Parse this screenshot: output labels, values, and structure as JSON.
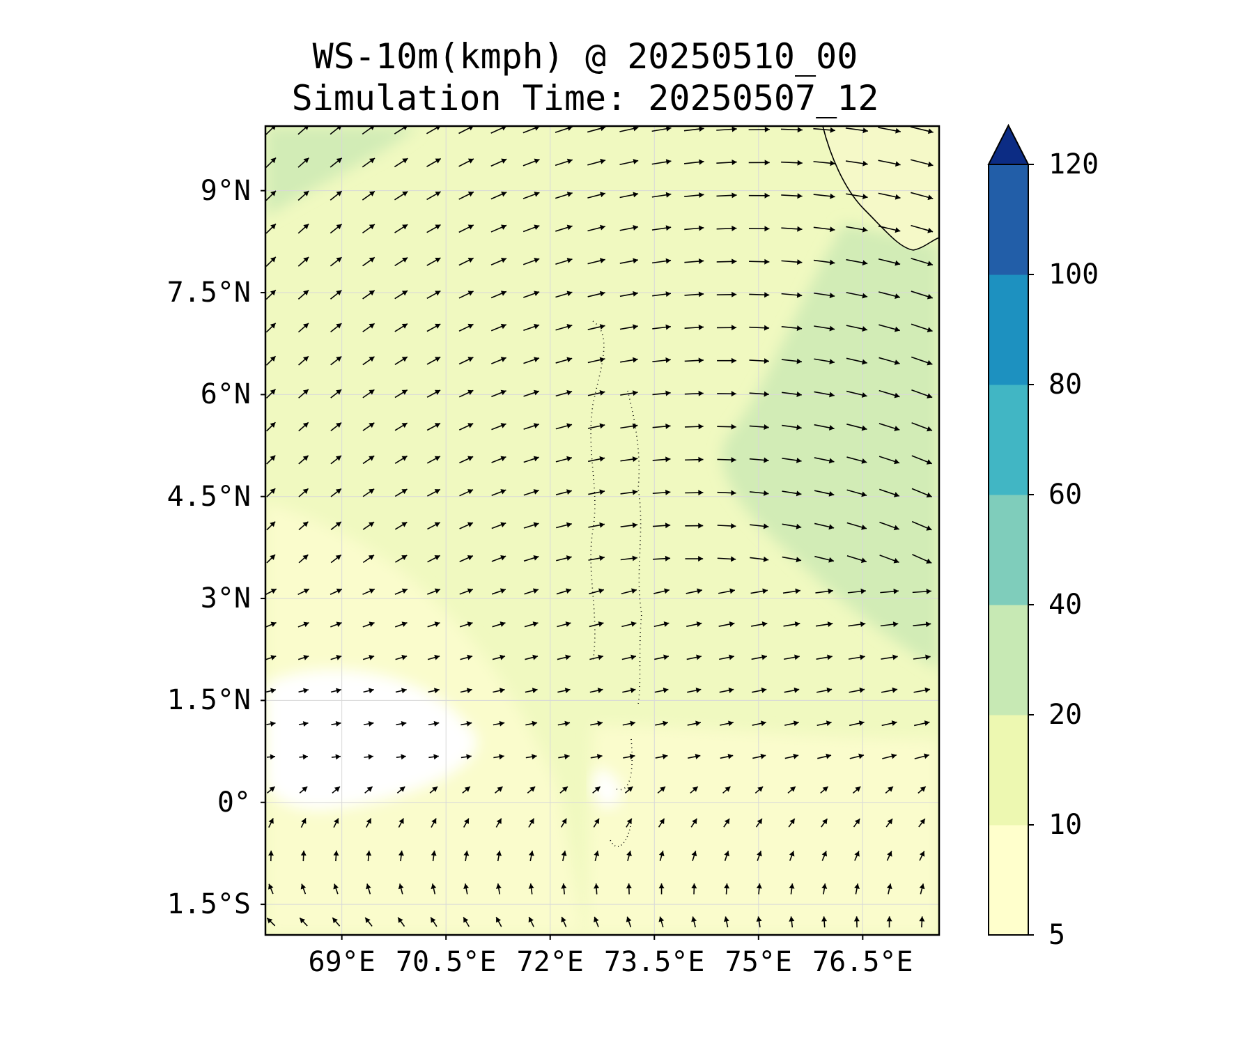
{
  "title": {
    "line1": "WS-10m(kmph) @ 20250510_00",
    "line2": "Simulation Time: 20250507_12"
  },
  "map": {
    "lon_range": [
      67.9,
      77.6
    ],
    "lat_range": [
      -1.95,
      9.95
    ],
    "lat_ticks": [
      {
        "value": 9,
        "label": "9°N"
      },
      {
        "value": 7.5,
        "label": "7.5°N"
      },
      {
        "value": 6,
        "label": "6°N"
      },
      {
        "value": 4.5,
        "label": "4.5°N"
      },
      {
        "value": 3,
        "label": "3°N"
      },
      {
        "value": 1.5,
        "label": "1.5°N"
      },
      {
        "value": 0,
        "label": "0°"
      },
      {
        "value": -1.5,
        "label": "1.5°S"
      }
    ],
    "lon_ticks": [
      {
        "value": 69,
        "label": "69°E"
      },
      {
        "value": 70.5,
        "label": "70.5°E"
      },
      {
        "value": 72,
        "label": "72°E"
      },
      {
        "value": 73.5,
        "label": "73.5°E"
      },
      {
        "value": 75,
        "label": "75°E"
      },
      {
        "value": 76.5,
        "label": "76.5°E"
      }
    ],
    "gridlines": true
  },
  "colorbar": {
    "levels": [
      5,
      10,
      20,
      40,
      60,
      80,
      100,
      120
    ],
    "labels": [
      "5",
      "10",
      "20",
      "40",
      "60",
      "80",
      "100",
      "120"
    ],
    "colors": [
      "#ffffcc",
      "#edf8b1",
      "#c7e9b4",
      "#7fcdbb",
      "#41b6c4",
      "#1d91c0",
      "#225ea8"
    ],
    "extend_color": "#0c2c84",
    "extend": "max"
  },
  "colors": {
    "background_field": "#f0f9c0",
    "calm_field": "#ffffff",
    "low_field": "#fafccc",
    "strong_field": "#d2ecb6",
    "land": "#f5f9c8",
    "arrow": "#000000"
  }
}
